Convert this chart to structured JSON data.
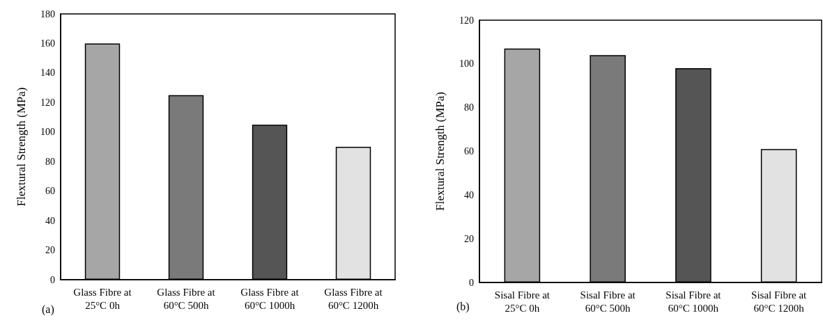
{
  "chart_data": [
    {
      "type": "bar",
      "ylabel": "Flextural Strength (MPa)",
      "categories": [
        "Glass Fibre at\n25°C 0h",
        "Glass Fibre at\n60°C 500h",
        "Glass Fibre at\n60°C 1000h",
        "Glass Fibre at\n60°C 1200h"
      ],
      "values": [
        160,
        125,
        105,
        90
      ],
      "colors": [
        "#a6a6a6",
        "#7a7a7a",
        "#555555",
        "#e2e2e2"
      ],
      "ylim": [
        0,
        180
      ],
      "yticks": [
        0,
        20,
        40,
        60,
        80,
        100,
        120,
        140,
        160,
        180
      ],
      "grid": false,
      "annotations": [
        "(a)"
      ]
    },
    {
      "type": "bar",
      "ylabel": "Flextural Strength (MPa)",
      "categories": [
        "Sisal Fibre at\n25°C 0h",
        "Sisal Fibre at\n60°C 500h",
        "Sisal Fibre at\n60°C 1000h",
        "Sisal Fibre at\n60°C 1200h"
      ],
      "values": [
        107,
        104,
        98,
        61
      ],
      "colors": [
        "#a6a6a6",
        "#7a7a7a",
        "#555555",
        "#e2e2e2"
      ],
      "ylim": [
        0,
        120
      ],
      "yticks": [
        0,
        20,
        40,
        60,
        80,
        100,
        120
      ],
      "grid": false,
      "annotations": [
        "(b)"
      ]
    }
  ]
}
